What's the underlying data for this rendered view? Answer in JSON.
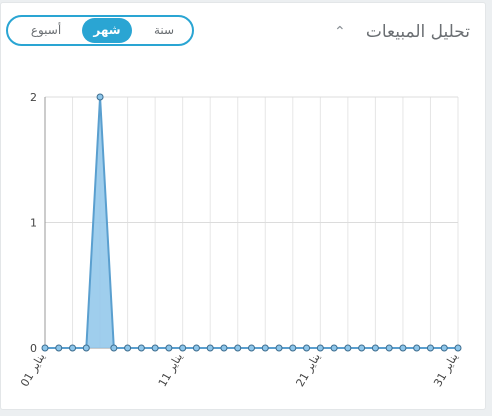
{
  "header": {
    "title": "تحليل المبيعات",
    "tabs": [
      "سنة",
      "شهر",
      "أسبوع"
    ],
    "active_tab": 1
  },
  "chart_data": {
    "type": "area",
    "categories": [
      "01 يناير",
      null,
      null,
      null,
      null,
      null,
      null,
      null,
      null,
      null,
      "11 يناير",
      null,
      null,
      null,
      null,
      null,
      null,
      null,
      null,
      null,
      "21 يناير",
      null,
      null,
      null,
      null,
      null,
      null,
      null,
      null,
      null,
      "31 يناير"
    ],
    "values": [
      0,
      0,
      0,
      0,
      2,
      0,
      0,
      0,
      0,
      0,
      0,
      0,
      0,
      0,
      0,
      0,
      0,
      0,
      0,
      0,
      0,
      0,
      0,
      0,
      0,
      0,
      0,
      0,
      0,
      0,
      0
    ],
    "color": "#8ec6ea",
    "ylim": [
      0,
      2
    ],
    "yticks": [
      0,
      1,
      2
    ],
    "grid": true
  }
}
